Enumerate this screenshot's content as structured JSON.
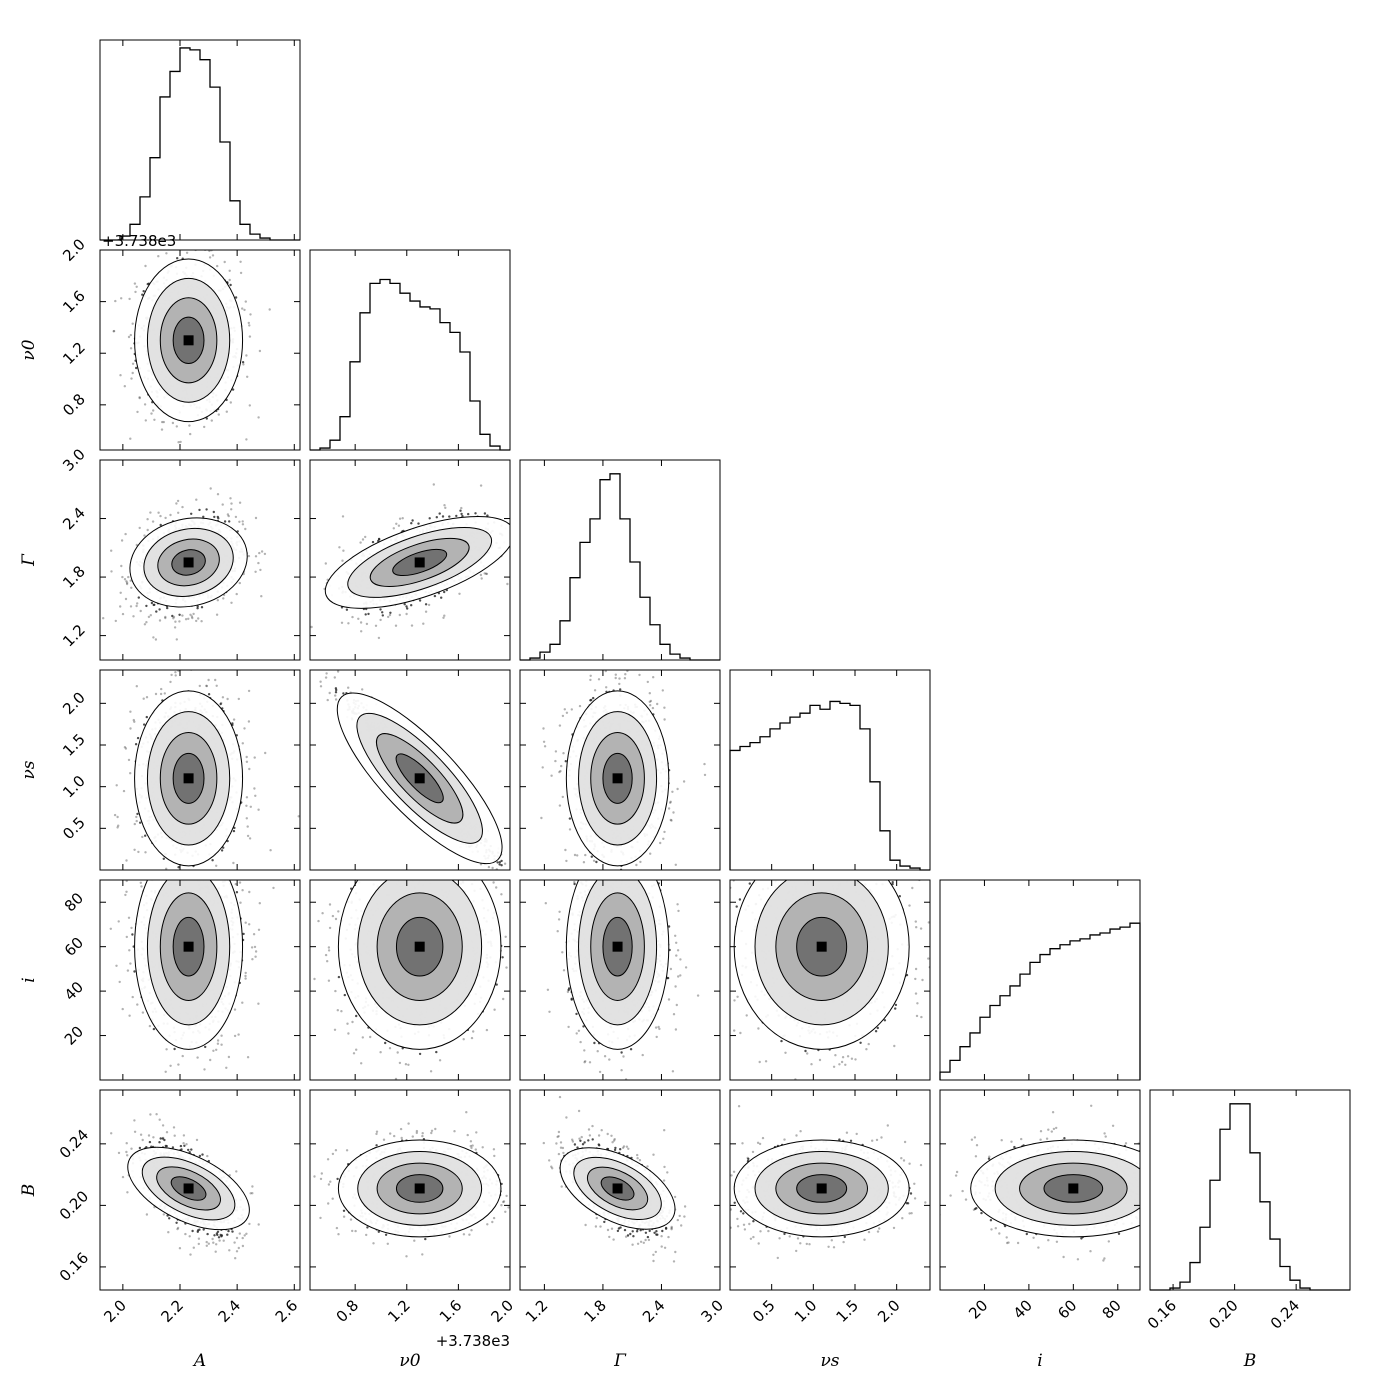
{
  "chart_data": {
    "type": "corner",
    "params": [
      {
        "key": "A",
        "label": "A",
        "range": [
          1.92,
          2.62
        ],
        "ticks": [
          2.0,
          2.2,
          2.4,
          2.6
        ],
        "tick_labels": [
          "2.0",
          "2.2",
          "2.4",
          "2.6"
        ],
        "center": 2.23,
        "sigma": 0.09
      },
      {
        "key": "nu0",
        "label": "ν0",
        "range": [
          0.45,
          2.0
        ],
        "ticks": [
          0.8,
          1.2,
          1.6,
          2.0
        ],
        "tick_labels": [
          "0.8",
          "1.2",
          "1.6",
          "2.0"
        ],
        "center": 1.3,
        "sigma": 0.3,
        "offset": "+3.738e3"
      },
      {
        "key": "G",
        "label": "Γ",
        "range": [
          0.95,
          3.0
        ],
        "ticks": [
          1.2,
          1.8,
          2.4,
          3.0
        ],
        "tick_labels": [
          "1.2",
          "1.8",
          "2.4",
          "3.0"
        ],
        "center": 1.95,
        "sigma": 0.25
      },
      {
        "key": "nus",
        "label": "νs",
        "range": [
          0.0,
          2.4
        ],
        "ticks": [
          0.5,
          1.0,
          1.5,
          2.0
        ],
        "tick_labels": [
          "0.5",
          "1.0",
          "1.5",
          "2.0"
        ],
        "center": 1.1,
        "sigma": 0.5
      },
      {
        "key": "i",
        "label": "i",
        "range": [
          0.0,
          90.0
        ],
        "ticks": [
          20,
          40,
          60,
          80
        ],
        "tick_labels": [
          "20",
          "40",
          "60",
          "80"
        ],
        "center": 60,
        "sigma": 22
      },
      {
        "key": "B",
        "label": "B",
        "range": [
          0.145,
          0.275
        ],
        "ticks": [
          0.16,
          0.2,
          0.24
        ],
        "tick_labels": [
          "0.16",
          "0.20",
          "0.24"
        ],
        "center": 0.211,
        "sigma": 0.015
      }
    ],
    "histograms": [
      [
        0.0,
        0.0,
        0.02,
        0.08,
        0.22,
        0.42,
        0.73,
        0.86,
        0.98,
        0.97,
        0.92,
        0.78,
        0.5,
        0.2,
        0.08,
        0.03,
        0.01,
        0.0,
        0.0,
        0.0
      ],
      [
        0.0,
        0.01,
        0.05,
        0.17,
        0.45,
        0.7,
        0.85,
        0.87,
        0.85,
        0.8,
        0.76,
        0.73,
        0.72,
        0.65,
        0.6,
        0.5,
        0.25,
        0.08,
        0.02,
        0.0
      ],
      [
        0.0,
        0.01,
        0.04,
        0.08,
        0.2,
        0.42,
        0.6,
        0.72,
        0.92,
        0.95,
        0.72,
        0.5,
        0.32,
        0.18,
        0.08,
        0.03,
        0.01,
        0.0,
        0.0,
        0.0
      ],
      [
        0.61,
        0.63,
        0.65,
        0.68,
        0.72,
        0.75,
        0.78,
        0.8,
        0.84,
        0.82,
        0.86,
        0.85,
        0.84,
        0.72,
        0.45,
        0.2,
        0.05,
        0.02,
        0.01,
        0.0
      ],
      [
        0.04,
        0.1,
        0.17,
        0.24,
        0.32,
        0.38,
        0.43,
        0.48,
        0.54,
        0.6,
        0.64,
        0.67,
        0.69,
        0.71,
        0.72,
        0.74,
        0.75,
        0.77,
        0.78,
        0.8
      ],
      [
        0.0,
        0.0,
        0.01,
        0.04,
        0.14,
        0.32,
        0.56,
        0.82,
        0.95,
        0.95,
        0.7,
        0.45,
        0.26,
        0.12,
        0.05,
        0.01,
        0.0,
        0.0,
        0.0,
        0.0
      ]
    ],
    "grid": false,
    "legend": "none"
  }
}
